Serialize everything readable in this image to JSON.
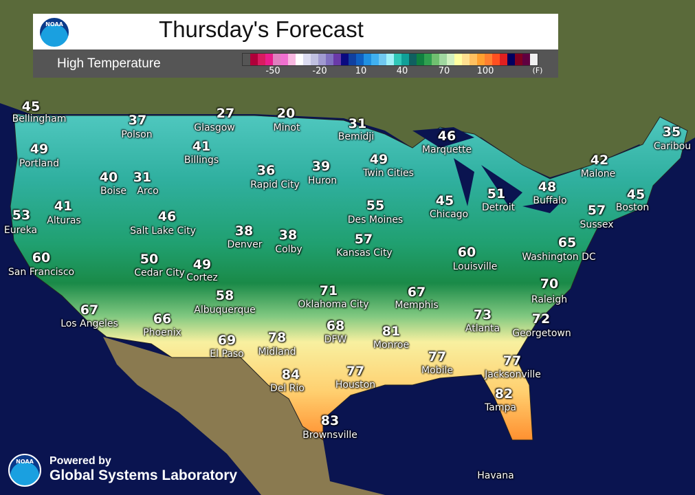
{
  "header": {
    "logo_text": "NOAA",
    "title": "Thursday's Forecast",
    "subtitle": "High Temperature"
  },
  "legend": {
    "colors": [
      "#555555",
      "#b0003a",
      "#d81b60",
      "#e91e8c",
      "#e07fbf",
      "#f070d0",
      "#f8b8e0",
      "#ffffff",
      "#dcdcf0",
      "#c0c0e0",
      "#a09ad0",
      "#8070c0",
      "#6a3aa8",
      "#0a0a80",
      "#1040a0",
      "#1060c0",
      "#2090e0",
      "#40b0f0",
      "#70c8f0",
      "#a0f0f8",
      "#30c8b8",
      "#10a098",
      "#106060",
      "#108040",
      "#30a050",
      "#70c070",
      "#a0d8a0",
      "#d0f0c0",
      "#ffffa0",
      "#ffe090",
      "#ffc060",
      "#ffa030",
      "#ff8030",
      "#ff5020",
      "#e02020",
      "#000060",
      "#800020",
      "#600040",
      "#f0f0f0"
    ],
    "ticks": [
      "-50",
      "-20",
      "10",
      "40",
      "70",
      "100"
    ],
    "unit": "(F)"
  },
  "cities": [
    {
      "name": "Bellingham",
      "temp": "45"
    },
    {
      "name": "Polson",
      "temp": "37"
    },
    {
      "name": "Glasgow",
      "temp": "27"
    },
    {
      "name": "Minot",
      "temp": "20"
    },
    {
      "name": "Bemidji",
      "temp": "31"
    },
    {
      "name": "Marquette",
      "temp": "46"
    },
    {
      "name": "Caribou",
      "temp": "35"
    },
    {
      "name": "Portland",
      "temp": "49"
    },
    {
      "name": "Billings",
      "temp": "41"
    },
    {
      "name": "Rapid City",
      "temp": "36"
    },
    {
      "name": "Huron",
      "temp": "39"
    },
    {
      "name": "Twin Cities",
      "temp": "49"
    },
    {
      "name": "Malone",
      "temp": "42"
    },
    {
      "name": "Boise",
      "temp": "40"
    },
    {
      "name": "Arco",
      "temp": "31"
    },
    {
      "name": "Buffalo",
      "temp": "48"
    },
    {
      "name": "Detroit",
      "temp": "51"
    },
    {
      "name": "Boston",
      "temp": "45"
    },
    {
      "name": "Eureka",
      "temp": "53"
    },
    {
      "name": "Alturas",
      "temp": "41"
    },
    {
      "name": "Salt Lake City",
      "temp": "46"
    },
    {
      "name": "Des Moines",
      "temp": "55"
    },
    {
      "name": "Chicago",
      "temp": "45"
    },
    {
      "name": "Sussex",
      "temp": "57"
    },
    {
      "name": "Denver",
      "temp": "38"
    },
    {
      "name": "Colby",
      "temp": "38"
    },
    {
      "name": "Kansas City",
      "temp": "57"
    },
    {
      "name": "Washington DC",
      "temp": "65"
    },
    {
      "name": "Louisville",
      "temp": "60"
    },
    {
      "name": "San Francisco",
      "temp": "60"
    },
    {
      "name": "Cedar City",
      "temp": "50"
    },
    {
      "name": "Cortez",
      "temp": "49"
    },
    {
      "name": "Raleigh",
      "temp": "70"
    },
    {
      "name": "Albuquerque",
      "temp": "58"
    },
    {
      "name": "Oklahoma City",
      "temp": "71"
    },
    {
      "name": "Memphis",
      "temp": "67"
    },
    {
      "name": "Atlanta",
      "temp": "73"
    },
    {
      "name": "Georgetown",
      "temp": "72"
    },
    {
      "name": "Los Angeles",
      "temp": "67"
    },
    {
      "name": "Phoenix",
      "temp": "66"
    },
    {
      "name": "DFW",
      "temp": "68"
    },
    {
      "name": "Monroe",
      "temp": "81"
    },
    {
      "name": "El Paso",
      "temp": "69"
    },
    {
      "name": "Midland",
      "temp": "78"
    },
    {
      "name": "Mobile",
      "temp": "77"
    },
    {
      "name": "Jacksonville",
      "temp": "77"
    },
    {
      "name": "Del Rio",
      "temp": "84"
    },
    {
      "name": "Houston",
      "temp": "77"
    },
    {
      "name": "Tampa",
      "temp": "82"
    },
    {
      "name": "Brownsville",
      "temp": "83"
    },
    {
      "name": "Havana",
      "temp": ""
    }
  ],
  "footer": {
    "logo_text": "NOAA",
    "line1": "Powered by",
    "line2": "Global Systems Laboratory"
  }
}
